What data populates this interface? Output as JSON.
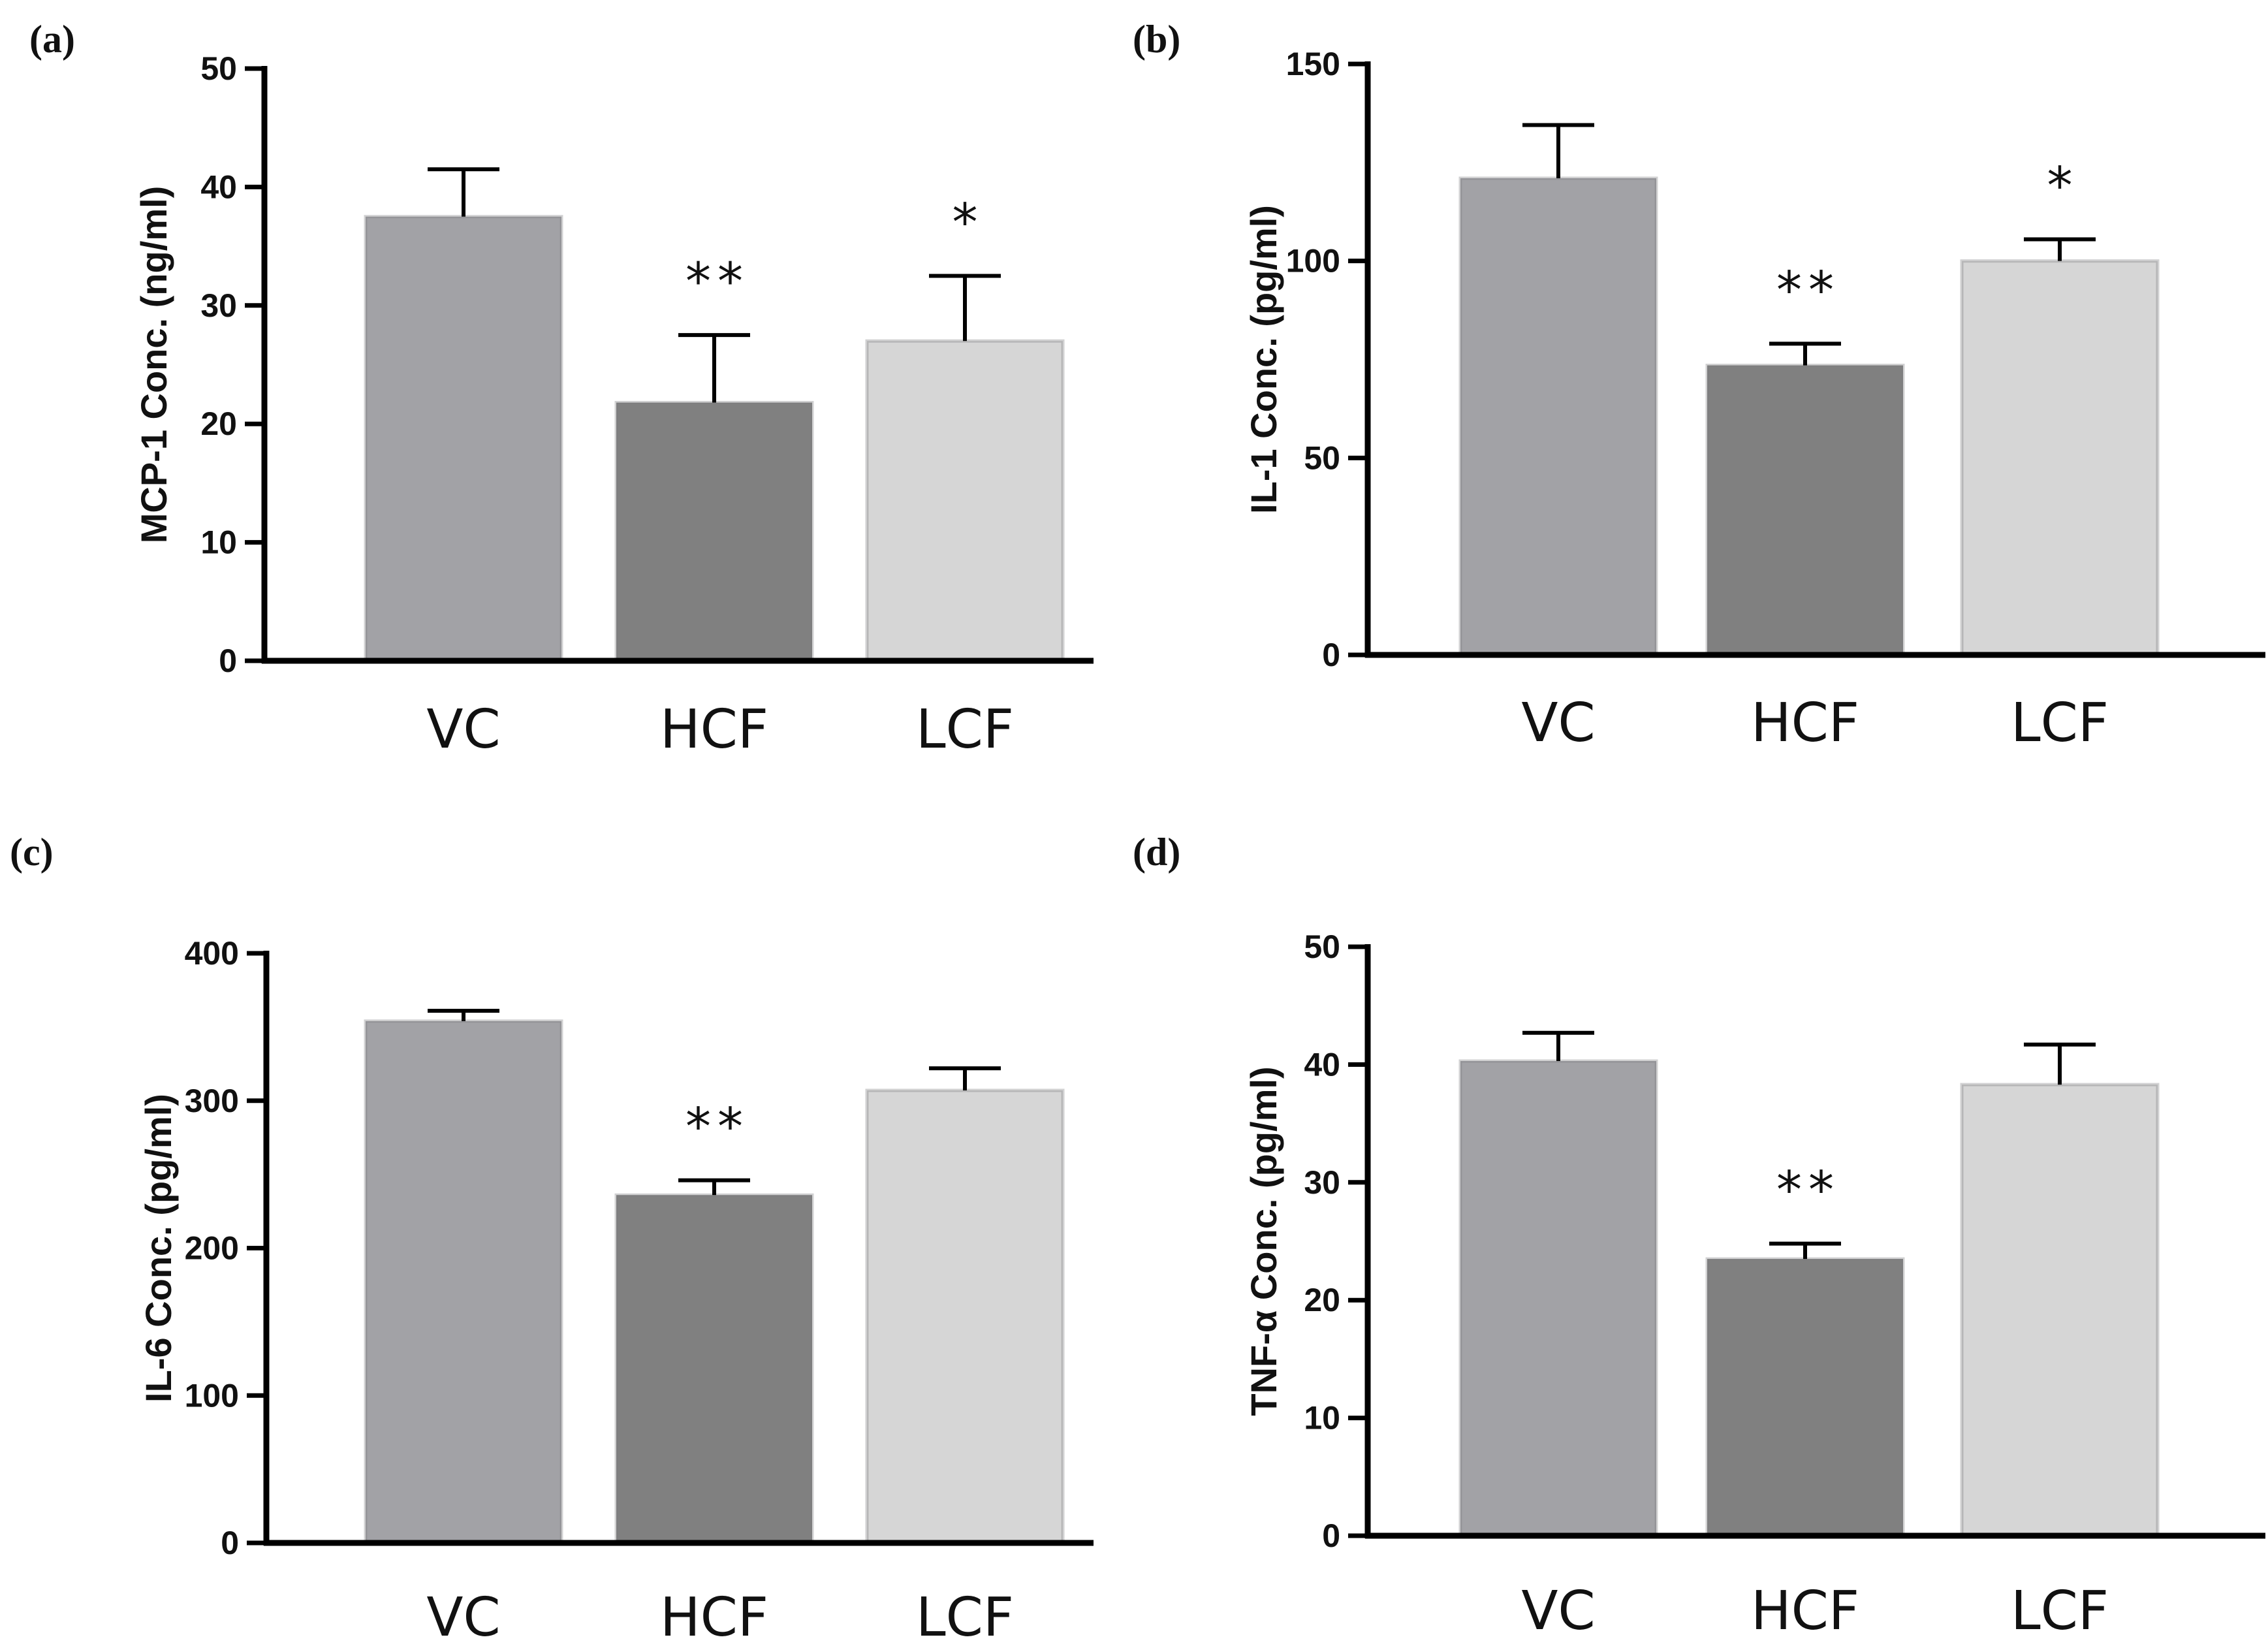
{
  "colors": {
    "VC": "#a2a2a6",
    "HCF": "#808080",
    "LCF": "#d6d6d6",
    "axis": "#000000"
  },
  "chart_data": [
    {
      "panel": "(a)",
      "type": "bar",
      "categories": [
        "VC",
        "HCF",
        "LCF"
      ],
      "values": [
        37.5,
        21.8,
        27.0
      ],
      "errors": [
        4.0,
        5.7,
        5.5
      ],
      "significance": [
        "",
        "**",
        "*"
      ],
      "ylabel": "MCP-1 Conc. (ng/ml)",
      "xlabel": "",
      "ylim": [
        0,
        50
      ],
      "yticks": [
        0,
        10,
        20,
        30,
        40,
        50
      ]
    },
    {
      "panel": "(b)",
      "type": "bar",
      "categories": [
        "VC",
        "HCF",
        "LCF"
      ],
      "values": [
        121,
        73.5,
        100
      ],
      "errors": [
        13.5,
        5.5,
        5.5
      ],
      "significance": [
        "",
        "**",
        "*"
      ],
      "ylabel": "IL-1 Conc. (pg/ml)",
      "xlabel": "",
      "ylim": [
        0,
        150
      ],
      "yticks": [
        0,
        50,
        100,
        150
      ]
    },
    {
      "panel": "(c)",
      "type": "bar",
      "categories": [
        "VC",
        "HCF",
        "LCF"
      ],
      "values": [
        354,
        236,
        307
      ],
      "errors": [
        7,
        10,
        15
      ],
      "significance": [
        "",
        "**",
        ""
      ],
      "ylabel": "IL-6 Conc. (pg/ml)",
      "xlabel": "",
      "ylim": [
        0,
        400
      ],
      "yticks": [
        0,
        100,
        200,
        300,
        400
      ]
    },
    {
      "panel": "(d)",
      "type": "bar",
      "categories": [
        "VC",
        "HCF",
        "LCF"
      ],
      "values": [
        40.3,
        23.5,
        38.3
      ],
      "errors": [
        2.4,
        1.3,
        3.4
      ],
      "significance": [
        "",
        "**",
        ""
      ],
      "ylabel": "TNF-α Conc. (pg/ml)",
      "xlabel": "",
      "ylim": [
        0,
        50
      ],
      "yticks": [
        0,
        10,
        20,
        30,
        40,
        50
      ]
    }
  ]
}
